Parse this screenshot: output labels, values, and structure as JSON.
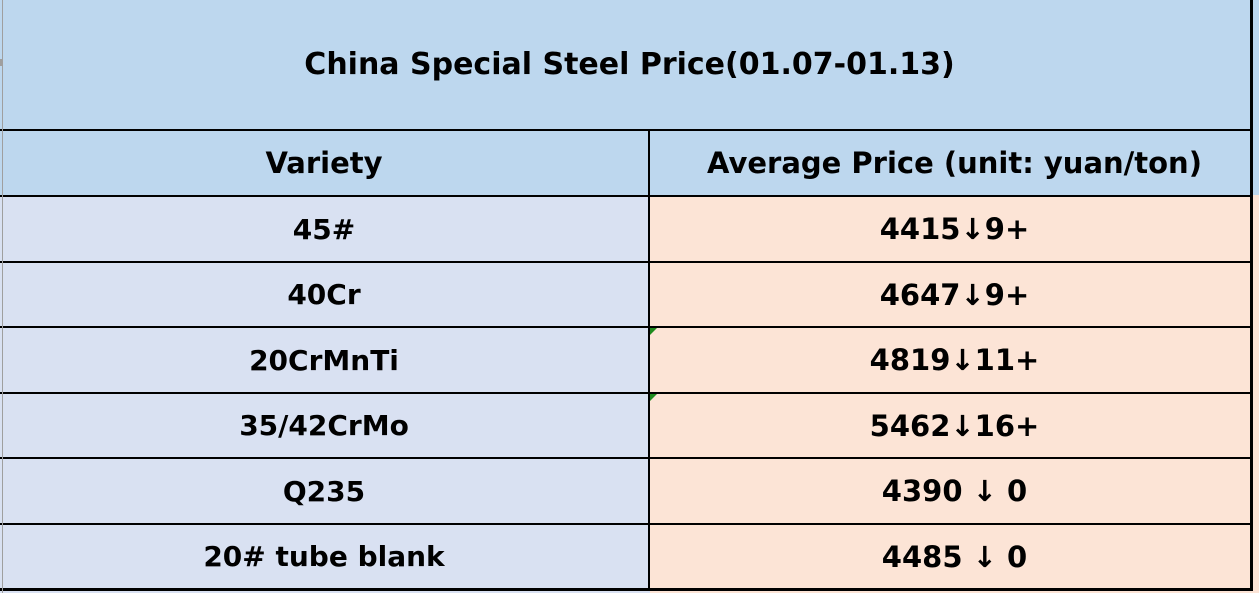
{
  "chart_data": {
    "type": "table",
    "title": "China Special Steel Price(01.07-01.13)",
    "columns": [
      "Variety",
      "Average Price (unit: yuan/ton)"
    ],
    "rows": [
      [
        "45#",
        "4415↓9+"
      ],
      [
        "40Cr",
        "4647↓9+"
      ],
      [
        "20CrMnTi",
        "4819↓11+"
      ],
      [
        "35/42CrMo",
        "5462↓16+"
      ],
      [
        "Q235",
        "4390 ↓ 0"
      ],
      [
        "20# tube blank",
        "4485 ↓ 0"
      ]
    ],
    "average_prices": [
      4415,
      4647,
      4819,
      5462,
      4390,
      4485
    ],
    "change_direction": "down",
    "change_amounts": [
      9,
      9,
      11,
      16,
      0,
      0
    ],
    "error_indicator_row_indices": [
      2,
      3
    ]
  },
  "colors": {
    "title_header_bg": "#BDD7EE",
    "variety_column_bg": "#D9E1F2",
    "price_column_bg": "#FCE4D6",
    "border": "#000000",
    "error_indicator_green": "#1E8A1E",
    "left_gridline_grey": "#9F9F9F"
  }
}
